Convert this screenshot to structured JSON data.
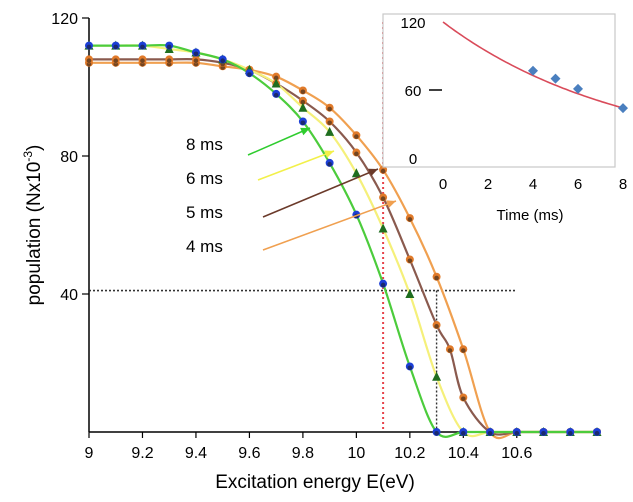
{
  "chart_data": [
    {
      "type": "line",
      "xlabel": "Excitation energy  E(eV)",
      "ylabel_main": "population (Nx10",
      "ylabel_exp": "-3",
      "ylabel_close": ")",
      "xlim": [
        9,
        10.9
      ],
      "ylim": [
        0,
        120
      ],
      "x_ticks": [
        9,
        9.2,
        9.4,
        9.6,
        9.8,
        10,
        10.2,
        10.4,
        10.6
      ],
      "x_tick_labels": [
        "9",
        "9.2",
        "9.4",
        "9.6",
        "9.8",
        "10",
        "10.2",
        "10.4",
        "10.6"
      ],
      "y_ticks": [
        40,
        80,
        120
      ],
      "y_tick_labels": [
        "40",
        "80",
        "120"
      ],
      "grid": false,
      "reference_lines": {
        "red_dotted_vertical_x": 10.1,
        "black_dotted_horizontal_y": 41,
        "black_dotted_vertical_x": 10.3
      },
      "series": [
        {
          "name": "8 ms",
          "line_color": "#4ccc3c",
          "marker_color": "#1c3fd6",
          "marker_shape": "circle",
          "points": [
            [
              9,
              112
            ],
            [
              9.1,
              112
            ],
            [
              9.2,
              112
            ],
            [
              9.3,
              112
            ],
            [
              9.4,
              110
            ],
            [
              9.5,
              108
            ],
            [
              9.6,
              104
            ],
            [
              9.7,
              98
            ],
            [
              9.8,
              90
            ],
            [
              9.9,
              78
            ],
            [
              10,
              63
            ],
            [
              10.1,
              43
            ],
            [
              10.2,
              19
            ],
            [
              10.3,
              0
            ],
            [
              10.4,
              0
            ],
            [
              10.5,
              0
            ],
            [
              10.6,
              0
            ],
            [
              10.7,
              0
            ],
            [
              10.8,
              0
            ],
            [
              10.9,
              0
            ]
          ]
        },
        {
          "name": "6 ms",
          "line_color": "#f5f07a",
          "marker_color": "#1f6e1f",
          "marker_shape": "triangle",
          "points": [
            [
              9,
              112
            ],
            [
              9.1,
              112
            ],
            [
              9.2,
              112
            ],
            [
              9.3,
              111
            ],
            [
              9.4,
              110
            ],
            [
              9.5,
              108
            ],
            [
              9.6,
              105
            ],
            [
              9.7,
              101
            ],
            [
              9.8,
              94
            ],
            [
              9.9,
              87
            ],
            [
              10,
              75
            ],
            [
              10.1,
              59
            ],
            [
              10.2,
              40
            ],
            [
              10.3,
              16
            ],
            [
              10.4,
              0
            ],
            [
              10.5,
              0
            ],
            [
              10.6,
              0
            ],
            [
              10.7,
              0
            ],
            [
              10.8,
              0
            ],
            [
              10.9,
              0
            ]
          ]
        },
        {
          "name": "5 ms",
          "line_color": "#8a5a4e",
          "marker_color": "#e07a2a",
          "marker_shape": "circle",
          "points": [
            [
              9,
              108
            ],
            [
              9.1,
              108
            ],
            [
              9.2,
              108
            ],
            [
              9.3,
              108
            ],
            [
              9.4,
              108
            ],
            [
              9.5,
              107
            ],
            [
              9.6,
              105
            ],
            [
              9.7,
              101
            ],
            [
              9.8,
              96
            ],
            [
              9.9,
              90
            ],
            [
              10,
              81
            ],
            [
              10.1,
              68
            ],
            [
              10.2,
              50
            ],
            [
              10.3,
              31
            ],
            [
              10.35,
              24
            ],
            [
              10.4,
              10
            ],
            [
              10.5,
              0
            ],
            [
              10.6,
              0
            ],
            [
              10.7,
              0
            ],
            [
              10.8,
              0
            ],
            [
              10.9,
              0
            ]
          ]
        },
        {
          "name": "4 ms",
          "line_color": "#f0a050",
          "marker_color": "#e07a2a",
          "marker_shape": "circle",
          "points": [
            [
              9,
              107
            ],
            [
              9.1,
              107
            ],
            [
              9.2,
              107
            ],
            [
              9.3,
              107
            ],
            [
              9.4,
              107
            ],
            [
              9.5,
              106
            ],
            [
              9.6,
              105
            ],
            [
              9.7,
              103
            ],
            [
              9.8,
              99
            ],
            [
              9.9,
              94
            ],
            [
              10,
              86
            ],
            [
              10.1,
              76
            ],
            [
              10.2,
              62
            ],
            [
              10.3,
              45
            ],
            [
              10.4,
              24
            ],
            [
              10.5,
              0
            ],
            [
              10.6,
              0
            ],
            [
              10.7,
              0
            ],
            [
              10.8,
              0
            ],
            [
              10.9,
              0
            ]
          ]
        }
      ],
      "series_labels": [
        "8 ms",
        "6 ms",
        "5 ms",
        "4 ms"
      ],
      "arrow_colors": [
        "#2ecc2e",
        "#f2f04a",
        "#6b3a2a",
        "#f0a050"
      ]
    },
    {
      "type": "scatter",
      "inset": true,
      "xlabel": "Time (ms)",
      "xlim": [
        0,
        8
      ],
      "ylim": [
        0,
        120
      ],
      "x_ticks": [
        0,
        2,
        4,
        6,
        8
      ],
      "x_tick_labels": [
        "0",
        "2",
        "4",
        "6",
        "8"
      ],
      "y_ticks": [
        0,
        60,
        120
      ],
      "y_tick_labels": [
        "0",
        "60",
        "120"
      ],
      "points": [
        [
          4,
          77
        ],
        [
          5,
          70
        ],
        [
          6,
          61
        ],
        [
          8,
          44
        ]
      ],
      "marker_color": "#4a7fbf",
      "fit": {
        "type": "exponential",
        "amplitude": 120,
        "tau_ms": 8,
        "color": "#d94b5a"
      }
    }
  ]
}
